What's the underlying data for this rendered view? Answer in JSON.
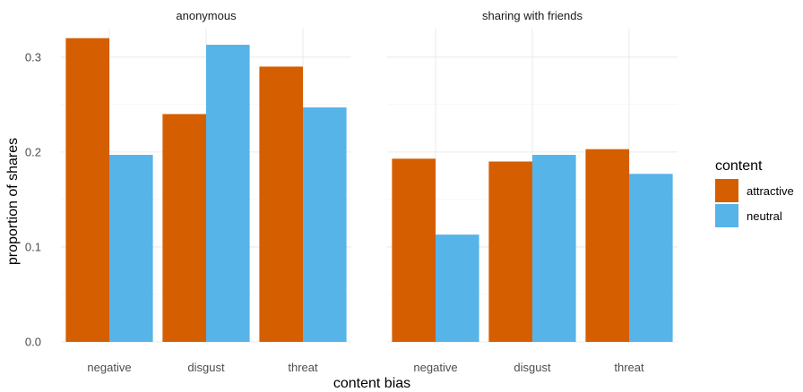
{
  "chart_data": {
    "type": "bar",
    "xlabel": "content bias",
    "ylabel": "proportion of shares",
    "ylim": [
      0,
      0.33
    ],
    "yticks": [
      "0.0",
      "0.1",
      "0.2",
      "0.3"
    ],
    "ytick_values": [
      0,
      0.1,
      0.2,
      0.3
    ],
    "grid": true,
    "legend": {
      "title": "content",
      "position": "right",
      "entries": [
        "attractive",
        "neutral"
      ]
    },
    "colors": {
      "attractive": "#D55E00",
      "neutral": "#56B4E9"
    },
    "categories": [
      "negative",
      "disgust",
      "threat"
    ],
    "facets": [
      {
        "title": "anonymous",
        "series": [
          {
            "name": "attractive",
            "values": [
              0.32,
              0.24,
              0.29
            ]
          },
          {
            "name": "neutral",
            "values": [
              0.197,
              0.313,
              0.247
            ]
          }
        ]
      },
      {
        "title": "sharing with friends",
        "series": [
          {
            "name": "attractive",
            "values": [
              0.193,
              0.19,
              0.203
            ]
          },
          {
            "name": "neutral",
            "values": [
              0.113,
              0.197,
              0.177
            ]
          }
        ]
      }
    ]
  }
}
